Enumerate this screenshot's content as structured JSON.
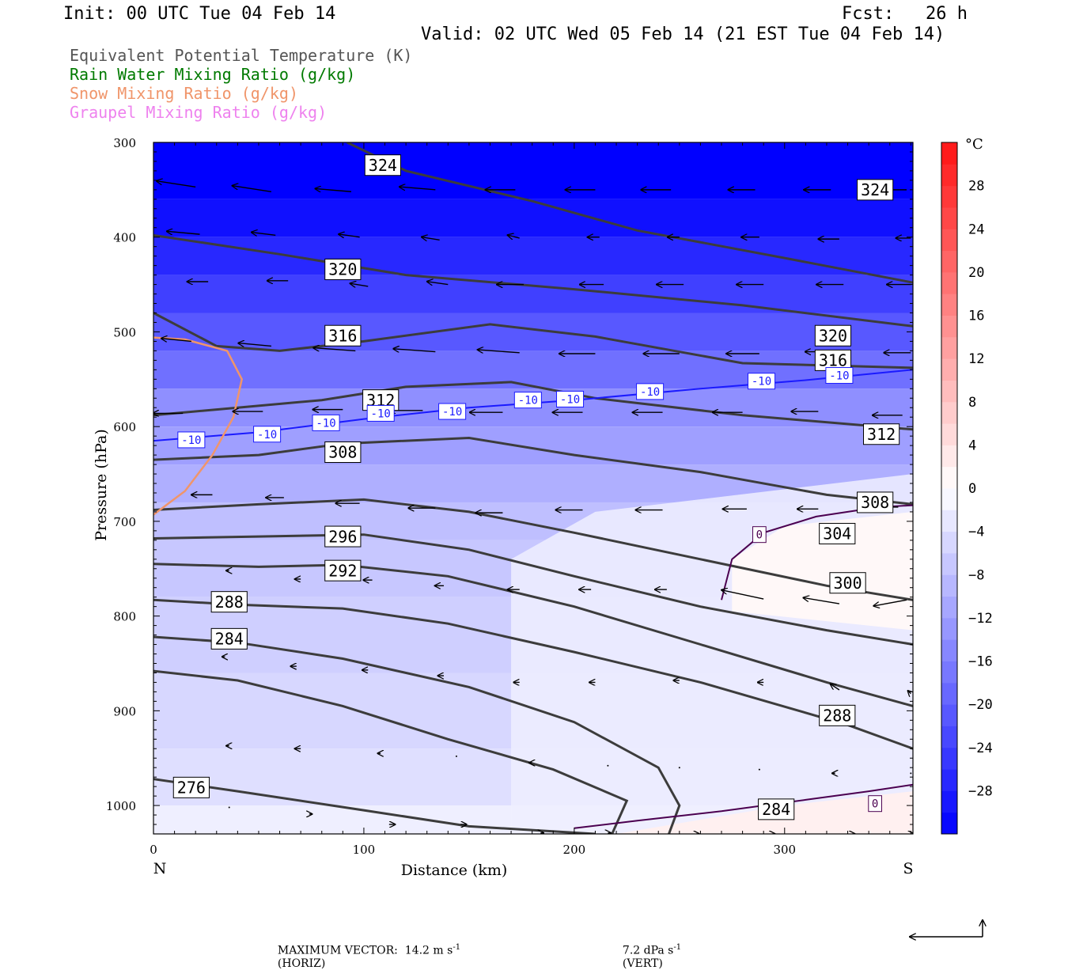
{
  "header": {
    "init": "Init: 00 UTC Tue 04 Feb 14",
    "fcst": "Fcst:   26 h",
    "valid": "Valid: 02 UTC Wed 05 Feb 14 (21 EST Tue 04 Feb 14)"
  },
  "legend": [
    {
      "label": "Equivalent Potential Temperature (K)",
      "color": "#555555"
    },
    {
      "label": "Rain Water Mixing Ratio (g/kg)",
      "color": "#007a00"
    },
    {
      "label": "Snow Mixing Ratio (g/kg)",
      "color": "#f0956a"
    },
    {
      "label": "Graupel Mixing Ratio (g/kg)",
      "color": "#ee82ee"
    }
  ],
  "footer": {
    "max_vector": "MAXIMUM VECTOR:  14.2 m s",
    "horiz": "(HORIZ)",
    "vert_val": "7.2 dPa s",
    "vert": "(VERT)",
    "exp": "-1"
  },
  "chart_data": {
    "type": "cross-section",
    "xlabel": "Distance (km)",
    "ylabel": "Pressure (hPa)",
    "x_ticks": [
      0,
      100,
      200,
      300
    ],
    "x_end_labels": {
      "left": "N",
      "right": "S"
    },
    "xlim": [
      0,
      361
    ],
    "y_ticks": [
      300,
      400,
      500,
      600,
      700,
      800,
      900,
      1000
    ],
    "ylim": [
      1030,
      300
    ],
    "colorbar": {
      "unit": "°C",
      "tick_labels": [
        28,
        24,
        20,
        16,
        12,
        8,
        4,
        0,
        -4,
        -8,
        -12,
        -16,
        -20,
        -24,
        -28
      ],
      "range": [
        -32,
        32
      ],
      "interval": 2
    },
    "theta_e_contours": [
      {
        "value": 324,
        "points": [
          [
            92,
            300
          ],
          [
            120,
            330
          ],
          [
            180,
            362
          ],
          [
            230,
            393
          ],
          [
            300,
            422
          ],
          [
            361,
            448
          ]
        ],
        "labels": [
          [
            109,
            324
          ],
          [
            343,
            350
          ]
        ]
      },
      {
        "value": 320,
        "points": [
          [
            0,
            398
          ],
          [
            60,
            418
          ],
          [
            120,
            440
          ],
          [
            200,
            455
          ],
          [
            280,
            472
          ],
          [
            361,
            494
          ]
        ],
        "labels": [
          [
            90,
            434
          ],
          [
            323,
            504
          ]
        ]
      },
      {
        "value": 316,
        "points": [
          [
            0,
            480
          ],
          [
            30,
            515
          ],
          [
            60,
            520
          ],
          [
            100,
            510
          ],
          [
            160,
            492
          ],
          [
            210,
            505
          ],
          [
            280,
            533
          ],
          [
            361,
            538
          ]
        ],
        "labels": [
          [
            90,
            504
          ],
          [
            323,
            530
          ]
        ]
      },
      {
        "value": 312,
        "points": [
          [
            0,
            588
          ],
          [
            40,
            580
          ],
          [
            80,
            572
          ],
          [
            120,
            558
          ],
          [
            170,
            553
          ],
          [
            210,
            570
          ],
          [
            280,
            588
          ],
          [
            361,
            603
          ]
        ],
        "labels": [
          [
            108,
            572
          ],
          [
            346,
            608
          ]
        ]
      },
      {
        "value": 308,
        "points": [
          [
            0,
            635
          ],
          [
            50,
            630
          ],
          [
            90,
            618
          ],
          [
            150,
            612
          ],
          [
            200,
            630
          ],
          [
            260,
            648
          ],
          [
            320,
            672
          ],
          [
            361,
            682
          ]
        ],
        "labels": [
          [
            90,
            627
          ],
          [
            343,
            680
          ]
        ]
      },
      {
        "value": 304,
        "points": [
          [
            0,
            688
          ],
          [
            50,
            682
          ],
          [
            100,
            677
          ],
          [
            150,
            690
          ],
          [
            200,
            712
          ],
          [
            260,
            740
          ],
          [
            320,
            768
          ],
          [
            361,
            783
          ]
        ],
        "labels": [
          [
            325,
            713
          ]
        ]
      },
      {
        "value": 300,
        "points": [
          [
            0,
            718
          ],
          [
            50,
            716
          ],
          [
            100,
            714
          ],
          [
            150,
            730
          ],
          [
            200,
            758
          ],
          [
            260,
            790
          ],
          [
            320,
            815
          ],
          [
            361,
            830
          ]
        ],
        "labels": [
          [
            330,
            765
          ]
        ]
      },
      {
        "value": 296,
        "points": [
          [
            0,
            745
          ],
          [
            50,
            748
          ],
          [
            90,
            746
          ],
          [
            140,
            758
          ],
          [
            200,
            790
          ],
          [
            260,
            830
          ],
          [
            320,
            870
          ],
          [
            361,
            895
          ]
        ],
        "labels": [
          [
            90,
            716
          ]
        ]
      },
      {
        "value": 292,
        "points": [
          [
            0,
            783
          ],
          [
            40,
            788
          ],
          [
            90,
            792
          ],
          [
            140,
            808
          ],
          [
            200,
            838
          ],
          [
            260,
            870
          ],
          [
            330,
            915
          ],
          [
            361,
            940
          ]
        ],
        "labels": [
          [
            90,
            752
          ]
        ]
      },
      {
        "value": 288,
        "points": [
          [
            0,
            822
          ],
          [
            40,
            828
          ],
          [
            90,
            845
          ],
          [
            150,
            875
          ],
          [
            200,
            912
          ],
          [
            240,
            960
          ],
          [
            250,
            1000
          ],
          [
            245,
            1030
          ]
        ],
        "labels": [
          [
            36,
            785
          ],
          [
            325,
            905
          ]
        ]
      },
      {
        "value": 284,
        "points": [
          [
            0,
            858
          ],
          [
            40,
            868
          ],
          [
            90,
            895
          ],
          [
            140,
            930
          ],
          [
            190,
            962
          ],
          [
            225,
            995
          ],
          [
            218,
            1030
          ]
        ],
        "labels": [
          [
            36,
            824
          ],
          [
            296,
            1004
          ]
        ]
      },
      {
        "value": 276,
        "points": [
          [
            0,
            972
          ],
          [
            40,
            985
          ],
          [
            100,
            1005
          ],
          [
            150,
            1022
          ],
          [
            210,
            1030
          ]
        ],
        "labels": [
          [
            18,
            981
          ]
        ]
      }
    ],
    "temperature_contours": [
      {
        "value": -10,
        "color": "#1a1aff",
        "points": [
          [
            0,
            615
          ],
          [
            50,
            606
          ],
          [
            100,
            592
          ],
          [
            150,
            580
          ],
          [
            200,
            572
          ],
          [
            260,
            560
          ],
          [
            310,
            551
          ],
          [
            361,
            540
          ]
        ],
        "labels": [
          [
            18,
            614
          ],
          [
            54,
            608
          ],
          [
            82,
            596
          ],
          [
            108,
            586
          ],
          [
            142,
            584
          ],
          [
            178,
            572
          ],
          [
            198,
            571
          ],
          [
            236,
            563
          ],
          [
            289,
            552
          ],
          [
            326,
            546
          ]
        ]
      },
      {
        "value": 0,
        "color": "#4b0050",
        "points": [
          [
            270,
            783
          ],
          [
            275,
            740
          ],
          [
            290,
            712
          ],
          [
            315,
            695
          ],
          [
            345,
            685
          ],
          [
            361,
            683
          ]
        ],
        "labels": [
          [
            288,
            714
          ]
        ]
      },
      {
        "value": 0,
        "color": "#4b0050",
        "points": [
          [
            200,
            1024
          ],
          [
            230,
            1016
          ],
          [
            270,
            1006
          ],
          [
            310,
            994
          ],
          [
            340,
            985
          ],
          [
            361,
            978
          ]
        ],
        "labels": [
          [
            343,
            998
          ]
        ]
      }
    ],
    "snow_contour": {
      "color": "#f0956a",
      "points": [
        [
          0,
          506
        ],
        [
          15,
          508
        ],
        [
          35,
          520
        ],
        [
          42,
          550
        ],
        [
          38,
          590
        ],
        [
          28,
          630
        ],
        [
          15,
          668
        ],
        [
          0,
          693
        ]
      ]
    },
    "vectors": [
      [
        20,
        347,
        -13,
        -2
      ],
      [
        56,
        352,
        -13,
        -2
      ],
      [
        94,
        352,
        -12,
        -1
      ],
      [
        134,
        350,
        -12,
        -1
      ],
      [
        172,
        350,
        -10,
        0
      ],
      [
        210,
        350,
        -10,
        0
      ],
      [
        246,
        350,
        -10,
        0
      ],
      [
        286,
        350,
        -9,
        0
      ],
      [
        322,
        350,
        -9,
        0
      ],
      [
        358,
        350,
        -8,
        0
      ],
      [
        22,
        397,
        -11,
        -1
      ],
      [
        58,
        398,
        -8,
        -1
      ],
      [
        98,
        400,
        -7,
        -1
      ],
      [
        136,
        403,
        -6,
        -1
      ],
      [
        174,
        401,
        -4,
        -1
      ],
      [
        212,
        400,
        -4,
        0
      ],
      [
        250,
        400,
        -4,
        0
      ],
      [
        288,
        400,
        -6,
        0
      ],
      [
        326,
        402,
        -7,
        0
      ],
      [
        360,
        401,
        -5,
        0
      ],
      [
        26,
        447,
        -7,
        0
      ],
      [
        64,
        446,
        -7,
        0
      ],
      [
        102,
        452,
        -6,
        -1
      ],
      [
        140,
        450,
        -7,
        -1
      ],
      [
        176,
        450,
        -9,
        0
      ],
      [
        214,
        450,
        -8,
        0
      ],
      [
        252,
        450,
        -9,
        0
      ],
      [
        290,
        450,
        -9,
        0
      ],
      [
        328,
        450,
        -9,
        0
      ],
      [
        360,
        450,
        -8,
        0
      ],
      [
        18,
        510,
        -10,
        -1
      ],
      [
        56,
        515,
        -11,
        -1
      ],
      [
        96,
        520,
        -14,
        -1
      ],
      [
        134,
        521,
        -14,
        -1
      ],
      [
        174,
        522,
        -14,
        -1
      ],
      [
        210,
        523,
        -12,
        0
      ],
      [
        250,
        523,
        -12,
        0
      ],
      [
        288,
        523,
        -11,
        0
      ],
      [
        324,
        521,
        -10,
        0
      ],
      [
        360,
        522,
        -9,
        0
      ],
      [
        14,
        586,
        -10,
        0
      ],
      [
        52,
        584,
        -10,
        0
      ],
      [
        90,
        582,
        -10,
        0
      ],
      [
        128,
        583,
        -11,
        0
      ],
      [
        166,
        585,
        -11,
        0
      ],
      [
        204,
        585,
        -10,
        0
      ],
      [
        242,
        585,
        -10,
        0
      ],
      [
        280,
        585,
        -10,
        0
      ],
      [
        316,
        584,
        -9,
        0
      ],
      [
        356,
        588,
        -10,
        0
      ],
      [
        28,
        672,
        -7,
        0
      ],
      [
        62,
        675,
        -6,
        0
      ],
      [
        98,
        681,
        -8,
        0
      ],
      [
        134,
        686,
        -9,
        0
      ],
      [
        166,
        691,
        -9,
        0
      ],
      [
        204,
        688,
        -9,
        0
      ],
      [
        242,
        688,
        -9,
        0
      ],
      [
        282,
        687,
        -8,
        0
      ],
      [
        316,
        687,
        -7,
        0
      ],
      [
        354,
        685,
        -8,
        0
      ],
      [
        36,
        752,
        -1,
        0
      ],
      [
        70,
        761,
        -2,
        0
      ],
      [
        104,
        762,
        -3,
        0
      ],
      [
        138,
        768,
        -3,
        0
      ],
      [
        174,
        772,
        -4,
        0
      ],
      [
        208,
        772,
        -4,
        0
      ],
      [
        244,
        772,
        -4,
        0
      ],
      [
        290,
        782,
        -14,
        -3
      ],
      [
        326,
        787,
        -12,
        -2
      ],
      [
        358,
        783,
        -11,
        2
      ],
      [
        34,
        843,
        -1,
        0
      ],
      [
        68,
        853,
        -2,
        0
      ],
      [
        102,
        857,
        -2,
        0
      ],
      [
        138,
        863,
        -2,
        0
      ],
      [
        174,
        870,
        -2,
        0
      ],
      [
        210,
        870,
        -2,
        0
      ],
      [
        250,
        868,
        -2,
        0
      ],
      [
        290,
        870,
        -2,
        0
      ],
      [
        326,
        878,
        -3,
        -2
      ],
      [
        360,
        882,
        -1,
        -1
      ],
      [
        36,
        937,
        -1,
        0
      ],
      [
        70,
        940,
        -2,
        0
      ],
      [
        108,
        945,
        -1,
        0
      ],
      [
        144,
        948,
        0,
        0
      ],
      [
        180,
        955,
        -1,
        0
      ],
      [
        216,
        958,
        0,
        0
      ],
      [
        250,
        960,
        0,
        0
      ],
      [
        288,
        962,
        0,
        0
      ],
      [
        324,
        966,
        -1,
        0
      ],
      [
        360,
        966,
        0,
        0
      ],
      [
        36,
        1002,
        0,
        0
      ],
      [
        74,
        1009,
        1,
        0
      ],
      [
        112,
        1020,
        2,
        0
      ],
      [
        146,
        1020,
        2,
        0
      ],
      [
        184,
        1029,
        1,
        0
      ],
      [
        216,
        1029,
        1,
        0
      ],
      [
        258,
        1030,
        1,
        0
      ],
      [
        294,
        1030,
        1,
        0
      ],
      [
        332,
        1030,
        1,
        0
      ],
      [
        360,
        1030,
        1,
        0
      ]
    ]
  }
}
